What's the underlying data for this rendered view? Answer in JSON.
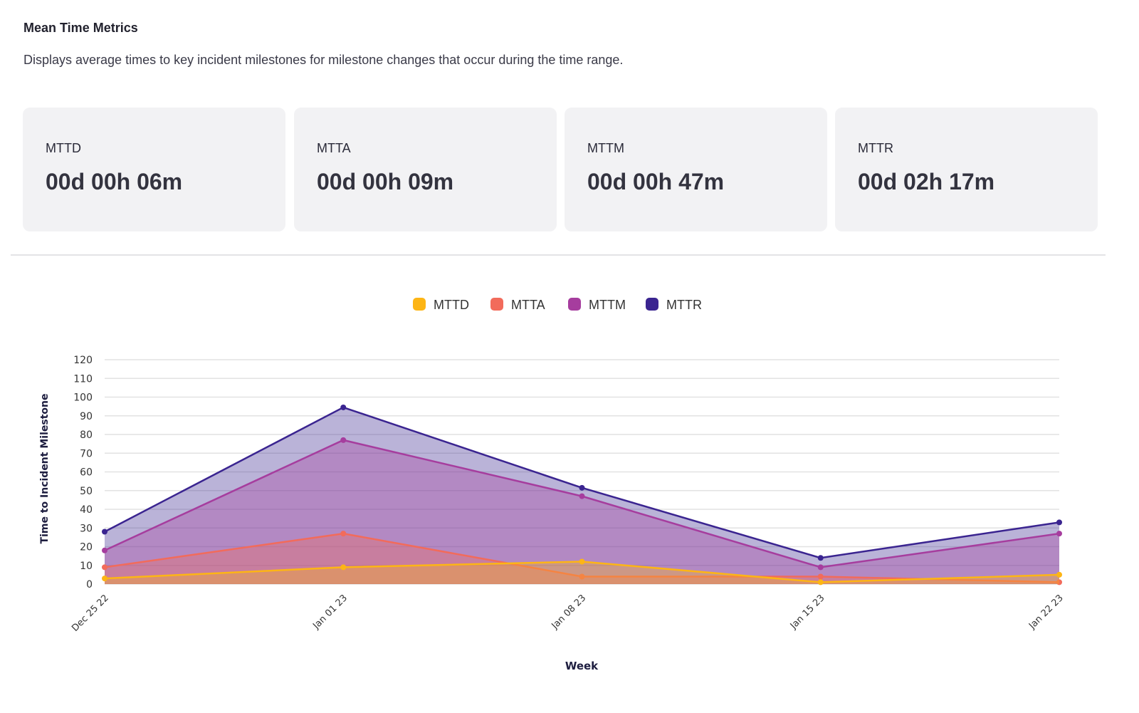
{
  "header": {
    "title": "Mean Time Metrics",
    "description": "Displays average times to key incident milestones for milestone changes that occur during the time range."
  },
  "cards": [
    {
      "label": "MTTD",
      "value": "00d 00h 06m"
    },
    {
      "label": "MTTA",
      "value": "00d 00h 09m"
    },
    {
      "label": "MTTM",
      "value": "00d 00h 47m"
    },
    {
      "label": "MTTR",
      "value": "00d 02h 17m"
    }
  ],
  "chart_data": {
    "type": "area",
    "xlabel": "Week",
    "ylabel": "Time to Incident Milestone",
    "categories": [
      "Dec 25 22",
      "Jan 01 23",
      "Jan 08 23",
      "Jan 15 23",
      "Jan 22 23"
    ],
    "ylim": [
      0,
      120
    ],
    "yticks": [
      0,
      10,
      20,
      30,
      40,
      50,
      60,
      70,
      80,
      90,
      100,
      110,
      120
    ],
    "grid": true,
    "legend": "top-center",
    "series": [
      {
        "name": "MTTR",
        "color": "#3a2490",
        "values": [
          28,
          94.5,
          51.5,
          14,
          33
        ]
      },
      {
        "name": "MTTM",
        "color": "#a63d9e",
        "values": [
          18,
          77,
          47,
          9,
          27
        ]
      },
      {
        "name": "MTTA",
        "color": "#f26b5b",
        "values": [
          9,
          27,
          4,
          4,
          1
        ]
      },
      {
        "name": "MTTD",
        "color": "#fdb515",
        "values": [
          3,
          9,
          12,
          1,
          5
        ]
      }
    ],
    "legend_order": [
      "MTTD",
      "MTTA",
      "MTTM",
      "MTTR"
    ]
  }
}
